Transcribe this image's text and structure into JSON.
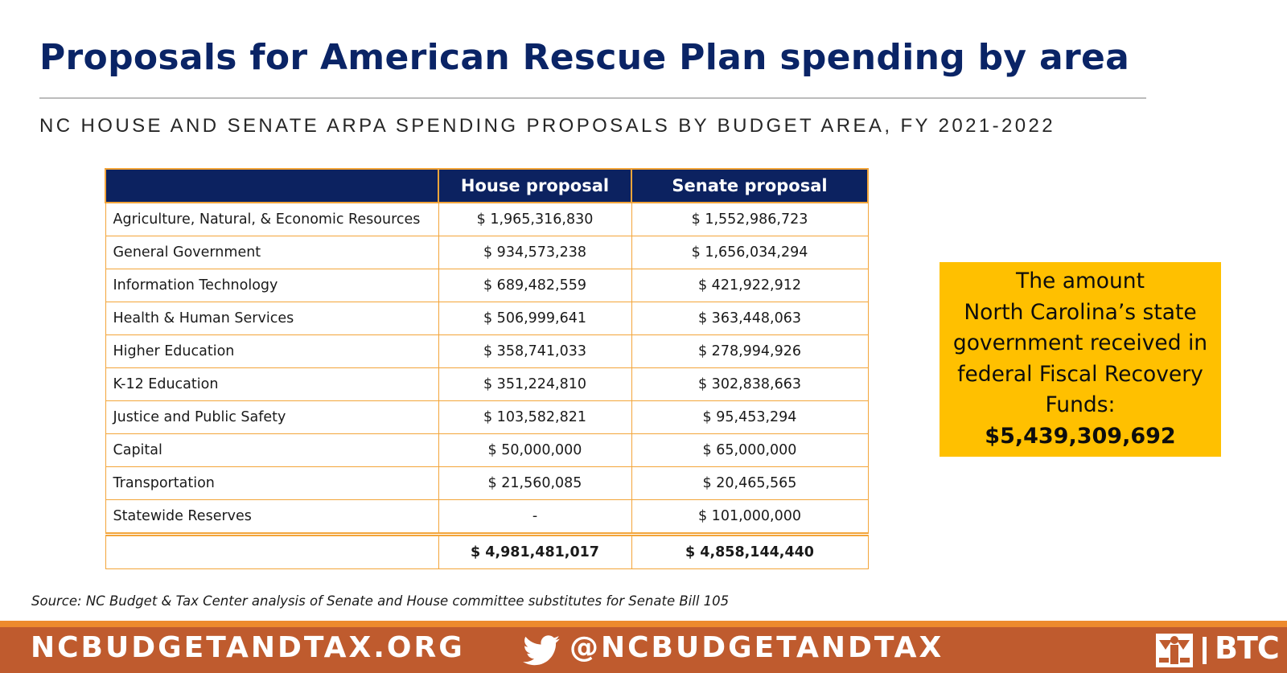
{
  "title": "Proposals for American Rescue Plan spending by area",
  "subtitle": "NC HOUSE AND SENATE ARPA SPENDING PROPOSALS BY BUDGET AREA, FY 2021-2022",
  "table": {
    "headers": [
      "",
      "House proposal",
      "Senate proposal"
    ],
    "rows": [
      {
        "area": "Agriculture, Natural, & Economic Resources",
        "house": "$ 1,965,316,830",
        "senate": "$ 1,552,986,723"
      },
      {
        "area": "General Government",
        "house": "$ 934,573,238",
        "senate": "$ 1,656,034,294"
      },
      {
        "area": "Information Technology",
        "house": "$ 689,482,559",
        "senate": "$ 421,922,912"
      },
      {
        "area": "Health & Human Services",
        "house": "$ 506,999,641",
        "senate": "$ 363,448,063"
      },
      {
        "area": "Higher Education",
        "house": "$ 358,741,033",
        "senate": "$ 278,994,926"
      },
      {
        "area": "K-12 Education",
        "house": "$ 351,224,810",
        "senate": "$ 302,838,663"
      },
      {
        "area": "Justice and Public Safety",
        "house": "$ 103,582,821",
        "senate": "$ 95,453,294"
      },
      {
        "area": "Capital",
        "house": "$ 50,000,000",
        "senate": "$ 65,000,000"
      },
      {
        "area": "Transportation",
        "house": "$ 21,560,085",
        "senate": "$ 20,465,565"
      },
      {
        "area": "Statewide Reserves",
        "house": "-",
        "senate": "$ 101,000,000"
      }
    ],
    "total": {
      "area": "",
      "house": "$  4,981,481,017",
      "senate": "$ 4,858,144,440"
    }
  },
  "callout": {
    "lines": [
      "The amount",
      "North Carolina’s state",
      "government received in",
      "federal Fiscal Recovery",
      "Funds:"
    ],
    "amount": "$5,439,309,692"
  },
  "source": "Source: NC Budget & Tax Center analysis of Senate and House committee substitutes for Senate Bill 105",
  "footer": {
    "site": "NCBUDGETANDTAX.ORG",
    "twitter_icon": "twitter-bird-icon",
    "handle": "@NCBUDGETANDTAX",
    "logo_text": "BTC"
  },
  "colors": {
    "title": "#0a2466",
    "table_header_bg": "#0c2260",
    "table_border": "#f3a53a",
    "callout_bg": "#ffc000",
    "footer_bg": "#bf5b2e",
    "footer_accent": "#ed8a2d"
  }
}
